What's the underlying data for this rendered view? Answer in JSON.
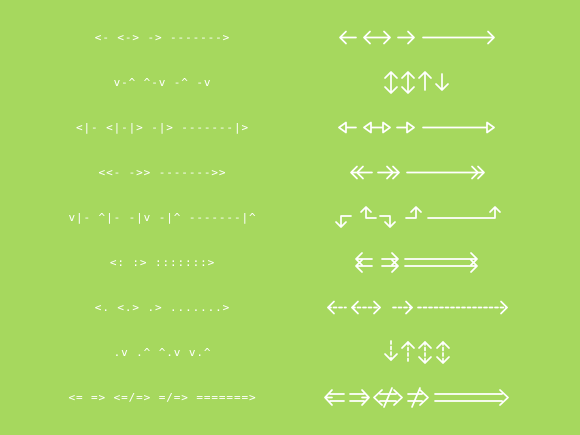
{
  "rows": [
    {
      "code": "<- <-> -> ------->",
      "glyphs": [
        "left-arrow",
        "left-right-arrow",
        "right-arrow",
        "long-right-arrow"
      ]
    },
    {
      "code": "v-^ ^-v -^ -v",
      "glyphs": [
        "down-up-arrow",
        "up-down-arrow",
        "up-arrow",
        "down-arrow"
      ]
    },
    {
      "code": "<|- <|-|> -|> -------|>",
      "glyphs": [
        "left-triangle-arrow",
        "left-right-triangle-arrow",
        "right-triangle-arrow",
        "long-right-triangle-arrow"
      ]
    },
    {
      "code": "<<- ->> ------->>",
      "glyphs": [
        "left-double-head-arrow",
        "right-double-head-arrow",
        "long-right-double-head-arrow"
      ]
    },
    {
      "code": "v|- ^|- -|v -|^ -------|^",
      "glyphs": [
        "down-bar-arrow",
        "up-bar-arrow",
        "bar-down-arrow",
        "bar-up-arrow",
        "long-bar-up-arrow"
      ]
    },
    {
      "code": "<: :> :::::::>",
      "glyphs": [
        "left-double-line-arrow",
        "right-double-line-arrow",
        "long-right-double-line-arrow"
      ]
    },
    {
      "code": "<. <.> .> .......>",
      "glyphs": [
        "left-dotted-arrow",
        "left-right-dotted-arrow",
        "right-dotted-arrow",
        "long-right-dotted-arrow"
      ]
    },
    {
      "code": ".v .^ ^.v v.^",
      "glyphs": [
        "down-dotted-arrow",
        "up-dotted-arrow",
        "up-down-dotted-arrow",
        "down-up-dotted-arrow"
      ]
    },
    {
      "code": "<= => <=/=> =/=> =======>",
      "glyphs": [
        "left-double-arrow",
        "right-double-arrow",
        "not-left-right-double-arrow",
        "not-right-double-arrow",
        "long-right-double-arrow"
      ]
    }
  ],
  "colors": {
    "background": "#a6d85e",
    "foreground": "#ffffff"
  }
}
